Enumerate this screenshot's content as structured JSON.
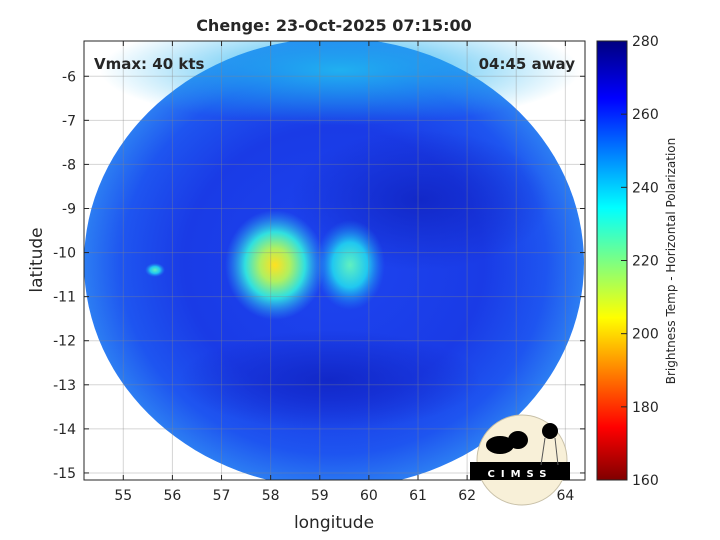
{
  "chart_data": {
    "type": "heatmap",
    "title": "Chenge: 23-Oct-2025 07:15:00",
    "xlabel": "longitude",
    "ylabel": "latitude",
    "xlim": [
      54.2,
      64.4
    ],
    "ylim": [
      -15.16,
      -5.2
    ],
    "xticks": [
      "55",
      "56",
      "57",
      "58",
      "59",
      "60",
      "61",
      "62",
      "63",
      "64"
    ],
    "yticks": [
      "-6",
      "-7",
      "-8",
      "-9",
      "-10",
      "-11",
      "-12",
      "-13",
      "-14",
      "-15"
    ],
    "grid": true,
    "annotations": {
      "left": "Vmax: 40 kts",
      "right": "04:45 away"
    },
    "colorbar": {
      "label": "Brightness Temp - Horizontal Polarization",
      "range": [
        160,
        280
      ],
      "ticks": [
        "160",
        "180",
        "200",
        "220",
        "240",
        "260",
        "280"
      ],
      "colormap": "jet"
    },
    "features": [
      {
        "name": "warm background",
        "value_approx": 262,
        "color": "#1f3fe8"
      },
      {
        "name": "cold core",
        "lon": 57.8,
        "lat": -10.7,
        "value_approx": 205,
        "color": "#f0f020"
      },
      {
        "name": "convection east",
        "lon": 59.7,
        "lat": -10.4,
        "value_approx": 235,
        "color": "#20e0e0"
      },
      {
        "name": "outer edge north",
        "lat": -6.5,
        "value_approx": 245,
        "color": "#10a8f0"
      }
    ]
  },
  "logo": {
    "text": "CIMSS"
  }
}
